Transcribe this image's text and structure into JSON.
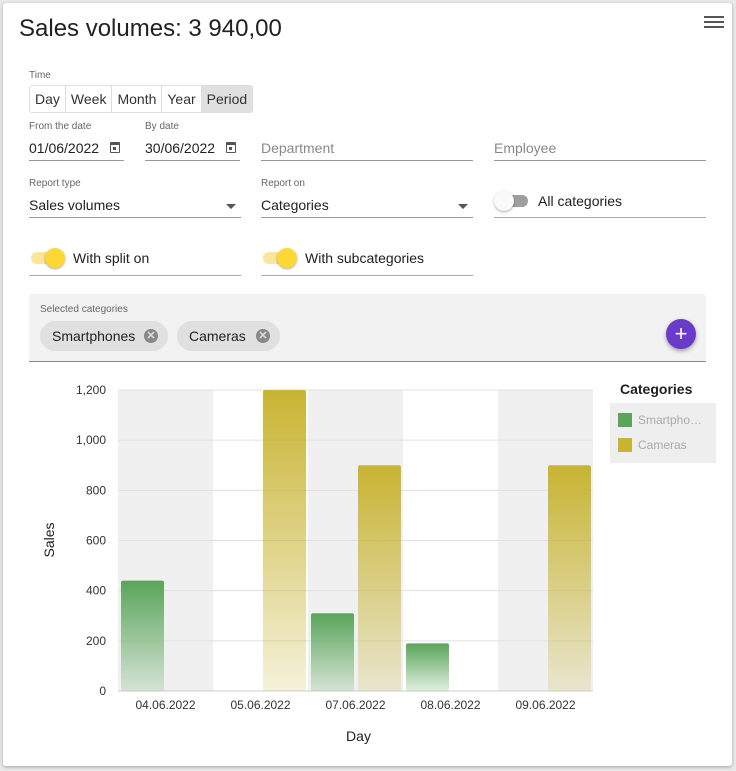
{
  "page": {
    "title": "Sales volumes: 3 940,00"
  },
  "time": {
    "label": "Time",
    "options": [
      "Day",
      "Week",
      "Month",
      "Year",
      "Period"
    ],
    "selected": "Period"
  },
  "filters": {
    "from_date": {
      "label": "From the date",
      "value": "01/06/2022"
    },
    "by_date": {
      "label": "By date",
      "value": "30/06/2022"
    },
    "department": {
      "placeholder": "Department"
    },
    "employee": {
      "placeholder": "Employee"
    },
    "report_type": {
      "label": "Report type",
      "value": "Sales volumes"
    },
    "report_on": {
      "label": "Report on",
      "value": "Categories"
    }
  },
  "toggles": {
    "all_categories": {
      "label": "All categories",
      "on": false
    },
    "with_split_on": {
      "label": "With split on",
      "on": true
    },
    "with_subcategories": {
      "label": "With subcategories",
      "on": true
    }
  },
  "selected_categories": {
    "label": "Selected categories",
    "chips": [
      "Smartphones",
      "Cameras"
    ],
    "add_icon": "plus-icon"
  },
  "colors": {
    "accent": "#6a3ac8",
    "toggle_on": "#fdd835",
    "smartphones": "#5aa55a",
    "cameras": "#c8b432"
  },
  "legend": {
    "title": "Categories",
    "items": [
      "Smartpho…",
      "Cameras"
    ]
  },
  "chart_data": {
    "type": "bar",
    "categories": [
      "04.06.2022",
      "05.06.2022",
      "07.06.2022",
      "08.06.2022",
      "09.06.2022"
    ],
    "series": [
      {
        "name": "Smartphones",
        "values": [
          440,
          0,
          310,
          190,
          0
        ]
      },
      {
        "name": "Cameras",
        "values": [
          0,
          1200,
          900,
          0,
          900
        ]
      }
    ],
    "xlabel": "Day",
    "ylabel": "Sales",
    "ylim": [
      0,
      1200
    ],
    "yticks": [
      "0",
      "200",
      "400",
      "600",
      "800",
      "1,000",
      "1,200"
    ],
    "grid": true,
    "legend_position": "right"
  }
}
